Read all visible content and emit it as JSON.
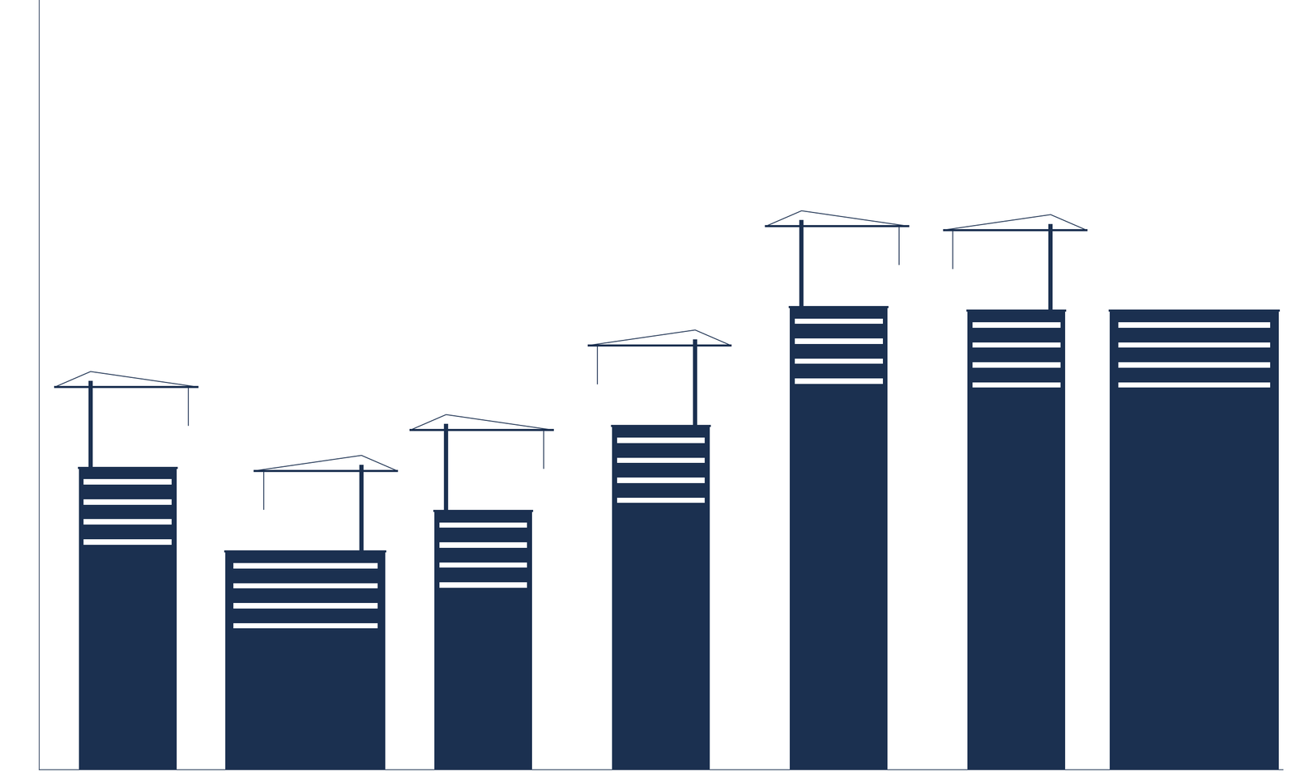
{
  "chart_data": {
    "type": "bar",
    "categories": [
      null,
      null,
      null,
      null,
      null,
      null,
      null
    ],
    "values": [
      39.2,
      28.3,
      33.6,
      44.6,
      60.1,
      59.6,
      59.6
    ],
    "color": "#1b3050",
    "ylim": [
      0,
      100
    ],
    "yticks": [],
    "grid": false,
    "tick_labels": false
  }
}
